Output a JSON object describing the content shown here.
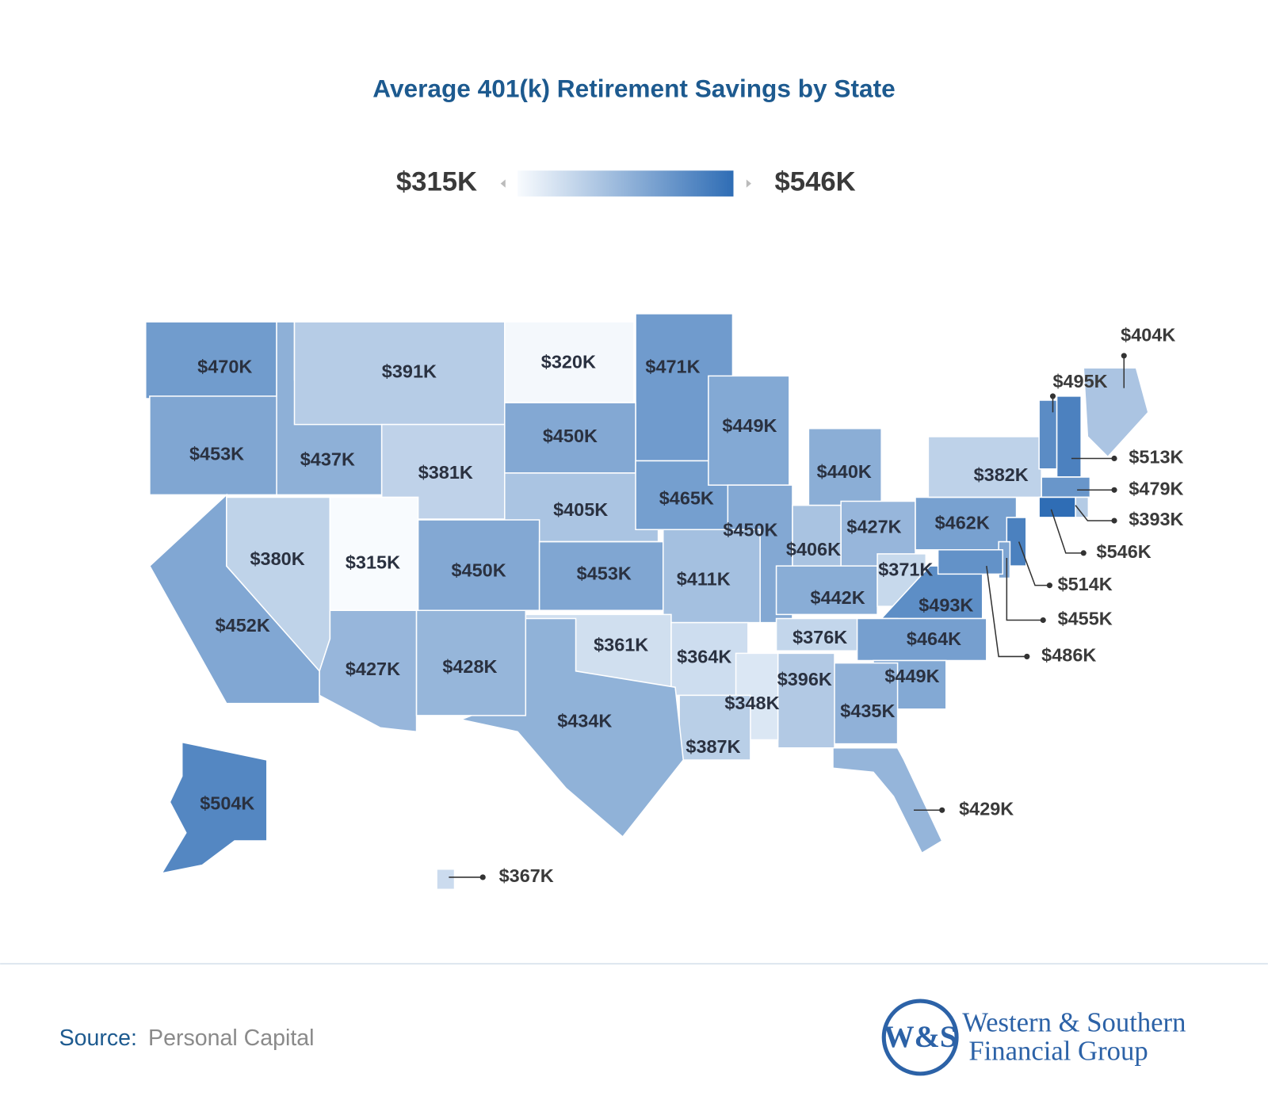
{
  "chart_data": {
    "type": "choropleth",
    "title": "Average 401(k) Retirement Savings by State",
    "legend": {
      "min": {
        "value": 315000,
        "label": "$315K"
      },
      "max": {
        "value": 546000,
        "label": "$546K"
      },
      "color_min": "#f8fbfe",
      "color_max": "#2f6db5"
    },
    "values": [
      470000,
      453000,
      452000,
      437000,
      391000,
      320000,
      471000,
      450000,
      381000,
      405000,
      380000,
      315000,
      450000,
      465000,
      449000,
      450000,
      440000,
      406000,
      427000,
      462000,
      382000,
      453000,
      411000,
      442000,
      371000,
      493000,
      376000,
      464000,
      361000,
      364000,
      449000,
      435000,
      396000,
      348000,
      387000,
      434000,
      427000,
      428000,
      429000,
      504000,
      367000,
      404000,
      495000,
      513000,
      479000,
      393000,
      546000,
      514000,
      455000,
      486000
    ],
    "value_labels": [
      "$470K",
      "$453K",
      "$452K",
      "$437K",
      "$391K",
      "$320K",
      "$471K",
      "$450K",
      "$381K",
      "$405K",
      "$380K",
      "$315K",
      "$450K",
      "$465K",
      "$449K",
      "$450K",
      "$440K",
      "$406K",
      "$427K",
      "$462K",
      "$382K",
      "$453K",
      "$411K",
      "$442K",
      "$371K",
      "$493K",
      "$376K",
      "$464K",
      "$361K",
      "$364K",
      "$449K",
      "$435K",
      "$396K",
      "$348K",
      "$387K",
      "$434K",
      "$427K",
      "$428K",
      "$429K",
      "$504K",
      "$367K",
      "$404K",
      "$495K",
      "$513K",
      "$479K",
      "$393K",
      "$546K",
      "$514K",
      "$455K",
      "$486K"
    ]
  },
  "footer": {
    "source_label": "Source:",
    "source": "Personal Capital",
    "logo_mark": "W&S",
    "logo_line1": "Western & Southern",
    "logo_line2": "Financial Group"
  }
}
